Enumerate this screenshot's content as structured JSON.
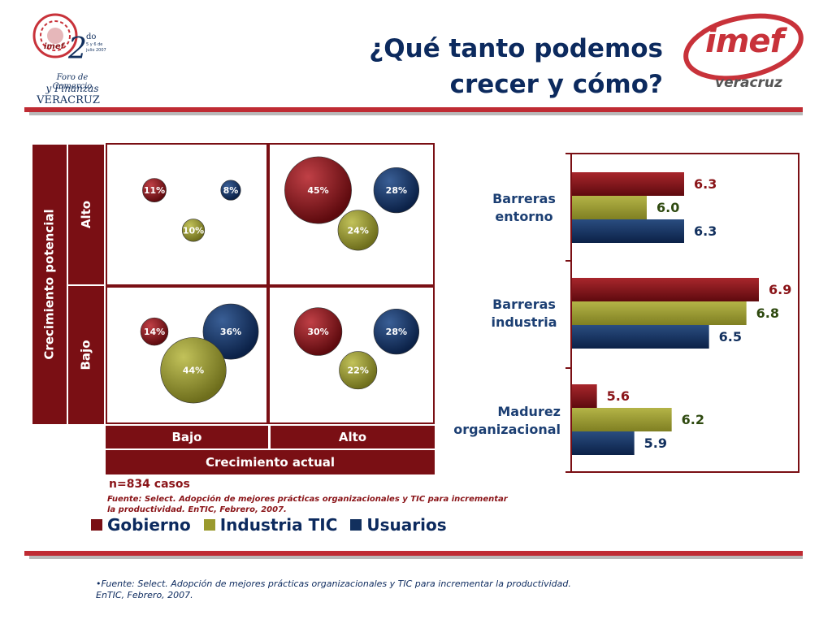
{
  "header": {
    "title_line1": "¿Qué tanto podemos",
    "title_line2": "crecer y cómo?",
    "left_logo_text": {
      "do": "do",
      "date": "5 y 6 de julio 2007",
      "forum": "Foro de Comercio",
      "finanzas": "y Finanzas",
      "city": "VERACRUZ"
    },
    "right_logo_text": {
      "brand": "imef",
      "city": "veracruz"
    }
  },
  "colors": {
    "gobierno": "#7a0f14",
    "industria": "#9a9a2e",
    "usuarios": "#12305e",
    "band": "#bf2b33"
  },
  "matrix": {
    "y_axis_title": "Crecimiento potencial",
    "x_axis_title": "Crecimiento actual",
    "y_levels": [
      "Alto",
      "Bajo"
    ],
    "x_levels": [
      "Bajo",
      "Alto"
    ],
    "sample": "n=834 casos",
    "source_line1": "Fuente: Select. Adopción de mejores prácticas organizacionales y TIC para incrementar",
    "source_line2": "la productividad. EnTIC, Febrero, 2007."
  },
  "legend": [
    {
      "label": "Gobierno",
      "color": "#7a0f14"
    },
    {
      "label": "Industria TIC",
      "color": "#9a9a2e"
    },
    {
      "label": "Usuarios",
      "color": "#12305e"
    }
  ],
  "chart_data": [
    {
      "type": "scatter",
      "title": "",
      "xlabel": "Crecimiento actual",
      "ylabel": "Crecimiento potencial",
      "quadrants": [
        {
          "x": "Bajo",
          "y": "Alto",
          "values": {
            "Gobierno": 11,
            "Usuarios": 8,
            "Industria TIC": 10
          }
        },
        {
          "x": "Alto",
          "y": "Alto",
          "values": {
            "Gobierno": 45,
            "Usuarios": 28,
            "Industria TIC": 24
          }
        },
        {
          "x": "Bajo",
          "y": "Bajo",
          "values": {
            "Gobierno": 14,
            "Usuarios": 36,
            "Industria TIC": 44
          }
        },
        {
          "x": "Alto",
          "y": "Bajo",
          "values": {
            "Gobierno": 30,
            "Usuarios": 28,
            "Industria TIC": 22
          }
        }
      ]
    },
    {
      "type": "bar",
      "orientation": "horizontal",
      "categories": [
        "Barreras entorno",
        "Barreras industria",
        "Madurez organizacional"
      ],
      "series": [
        {
          "name": "Gobierno",
          "values": [
            6.3,
            6.9,
            5.6
          ]
        },
        {
          "name": "Industria TIC",
          "values": [
            6.0,
            6.8,
            6.2
          ]
        },
        {
          "name": "Usuarios",
          "values": [
            6.3,
            6.5,
            5.9
          ]
        }
      ],
      "xlim": [
        5.4,
        7.2
      ],
      "grid": false
    }
  ],
  "footer": {
    "source_line1": "•Fuente: Select. Adopción de mejores prácticas organizacionales y TIC para incrementar la productividad.",
    "source_line2": "EnTIC, Febrero, 2007."
  }
}
